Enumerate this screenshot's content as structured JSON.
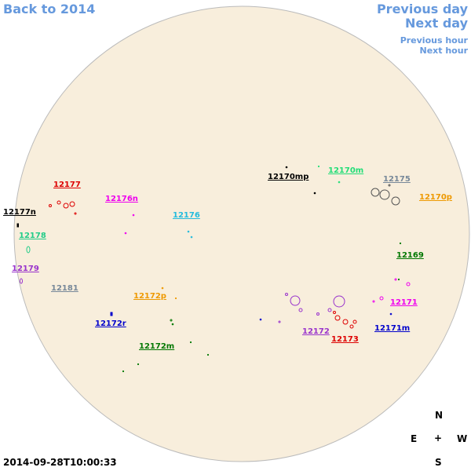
{
  "navigation": {
    "back": "Back to 2014",
    "previous_day": "Previous day",
    "next_day": "Next day",
    "previous_hour": "Previous hour",
    "next_hour": "Next hour"
  },
  "regions": [
    {
      "label": "12177",
      "color": "#dd0000"
    },
    {
      "label": "12177n",
      "color": "#000000"
    },
    {
      "label": "12178",
      "color": "#22cc88"
    },
    {
      "label": "12179",
      "color": "#9933cc"
    },
    {
      "label": "12181",
      "color": "#778899"
    },
    {
      "label": "12176n",
      "color": "#ee00ee"
    },
    {
      "label": "12176",
      "color": "#22bbdd"
    },
    {
      "label": "12172p",
      "color": "#ee9900"
    },
    {
      "label": "12172r",
      "color": "#0000cc"
    },
    {
      "label": "12172m",
      "color": "#007700"
    },
    {
      "label": "12170mp",
      "color": "#000000"
    },
    {
      "label": "12170m",
      "color": "#22dd77"
    },
    {
      "label": "12175",
      "color": "#778899"
    },
    {
      "label": "12170p",
      "color": "#ee9900"
    },
    {
      "label": "12169",
      "color": "#007700"
    },
    {
      "label": "12171",
      "color": "#ee00ee"
    },
    {
      "label": "12171m",
      "color": "#0000cc"
    },
    {
      "label": "12172",
      "color": "#9933cc"
    },
    {
      "label": "12173",
      "color": "#dd0000"
    }
  ],
  "timestamp": "2014-09-28T10:00:33",
  "compass": {
    "north": "N",
    "east": "E",
    "center": "+",
    "west": "W",
    "south": "S"
  }
}
